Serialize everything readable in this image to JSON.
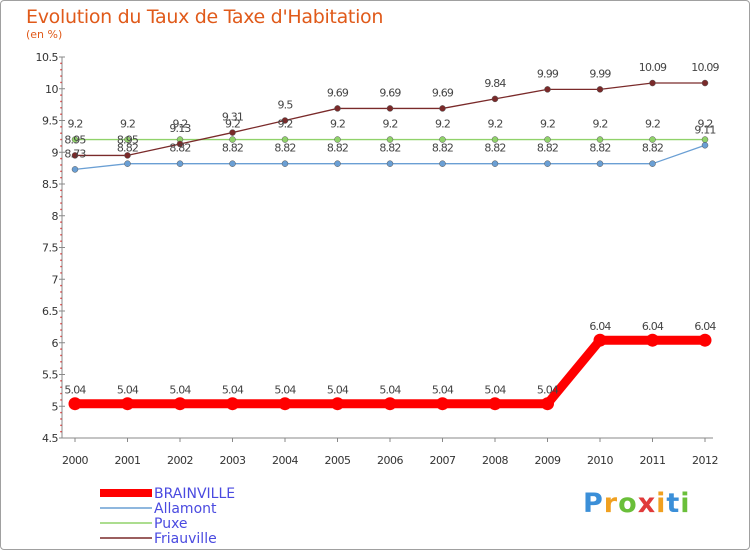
{
  "header": {
    "title": "Evolution du Taux de Taxe d'Habitation",
    "unit": "(en %)"
  },
  "chart_data": {
    "type": "line",
    "title": "Evolution du Taux de Taxe d'Habitation",
    "ylabel": "(en %)",
    "xlabel": "",
    "x": [
      "2000",
      "2001",
      "2002",
      "2003",
      "2004",
      "2005",
      "2006",
      "2007",
      "2008",
      "2009",
      "2010",
      "2011",
      "2012"
    ],
    "ylim": [
      4.5,
      10.5
    ],
    "yticks": [
      "4.5",
      "5",
      "5.5",
      "6",
      "6.5",
      "7",
      "7.5",
      "8",
      "8.5",
      "9",
      "9.5",
      "10",
      "10.5"
    ],
    "grid": false,
    "legend_position": "bottom-left",
    "series": [
      {
        "name": "BRAINVILLE",
        "color": "#ff0000",
        "values": [
          5.04,
          5.04,
          5.04,
          5.04,
          5.04,
          5.04,
          5.04,
          5.04,
          5.04,
          5.04,
          6.04,
          6.04,
          6.04
        ],
        "labels": [
          "5.04",
          "5.04",
          "5.04",
          "5.04",
          "5.04",
          "5.04",
          "5.04",
          "5.04",
          "5.04",
          "5.04",
          "6.04",
          "6.04",
          "6.04"
        ]
      },
      {
        "name": "Allamont",
        "color": "#6a9fd4",
        "values": [
          8.73,
          8.82,
          8.82,
          8.82,
          8.82,
          8.82,
          8.82,
          8.82,
          8.82,
          8.82,
          8.82,
          8.82,
          9.11
        ],
        "labels": [
          "8.73",
          "8.82",
          "8.82",
          "8.82",
          "8.82",
          "8.82",
          "8.82",
          "8.82",
          "8.82",
          "8.82",
          "8.82",
          "8.82",
          "9.11"
        ]
      },
      {
        "name": "Puxe",
        "color": "#90d26a",
        "values": [
          9.2,
          9.2,
          9.2,
          9.2,
          9.2,
          9.2,
          9.2,
          9.2,
          9.2,
          9.2,
          9.2,
          9.2,
          9.2
        ],
        "labels": [
          "9.2",
          "9.2",
          "9.2",
          "9.2",
          "9.2",
          "9.2",
          "9.2",
          "9.2",
          "9.2",
          "9.2",
          "9.2",
          "9.2",
          "9.2"
        ]
      },
      {
        "name": "Friauville",
        "color": "#7a2a2a",
        "values": [
          8.95,
          8.95,
          9.13,
          9.31,
          9.5,
          9.69,
          9.69,
          9.69,
          9.84,
          9.99,
          9.99,
          10.09,
          10.09
        ],
        "labels": [
          "8.95",
          "8.95",
          "9.13",
          "9.31",
          "9.5",
          "9.69",
          "9.69",
          "9.69",
          "9.84",
          "9.99",
          "9.99",
          "10.09",
          "10.09"
        ]
      }
    ]
  },
  "legend": [
    {
      "label": "BRAINVILLE",
      "color": "#ff0000",
      "text_color": "#4a4ae0"
    },
    {
      "label": "Allamont",
      "color": "#6a9fd4",
      "text_color": "#4a4ae0"
    },
    {
      "label": "Puxe",
      "color": "#90d26a",
      "text_color": "#4a4ae0"
    },
    {
      "label": "Friauville",
      "color": "#7a2a2a",
      "text_color": "#4a4ae0"
    }
  ],
  "logo": {
    "letters": [
      "P",
      "r",
      "o",
      "x",
      "i",
      "t",
      "i"
    ],
    "colors": [
      "#3b8fd8",
      "#f0a020",
      "#6abf3a",
      "#e03a3a",
      "#f0a020",
      "#3b8fd8",
      "#6abf3a"
    ]
  }
}
